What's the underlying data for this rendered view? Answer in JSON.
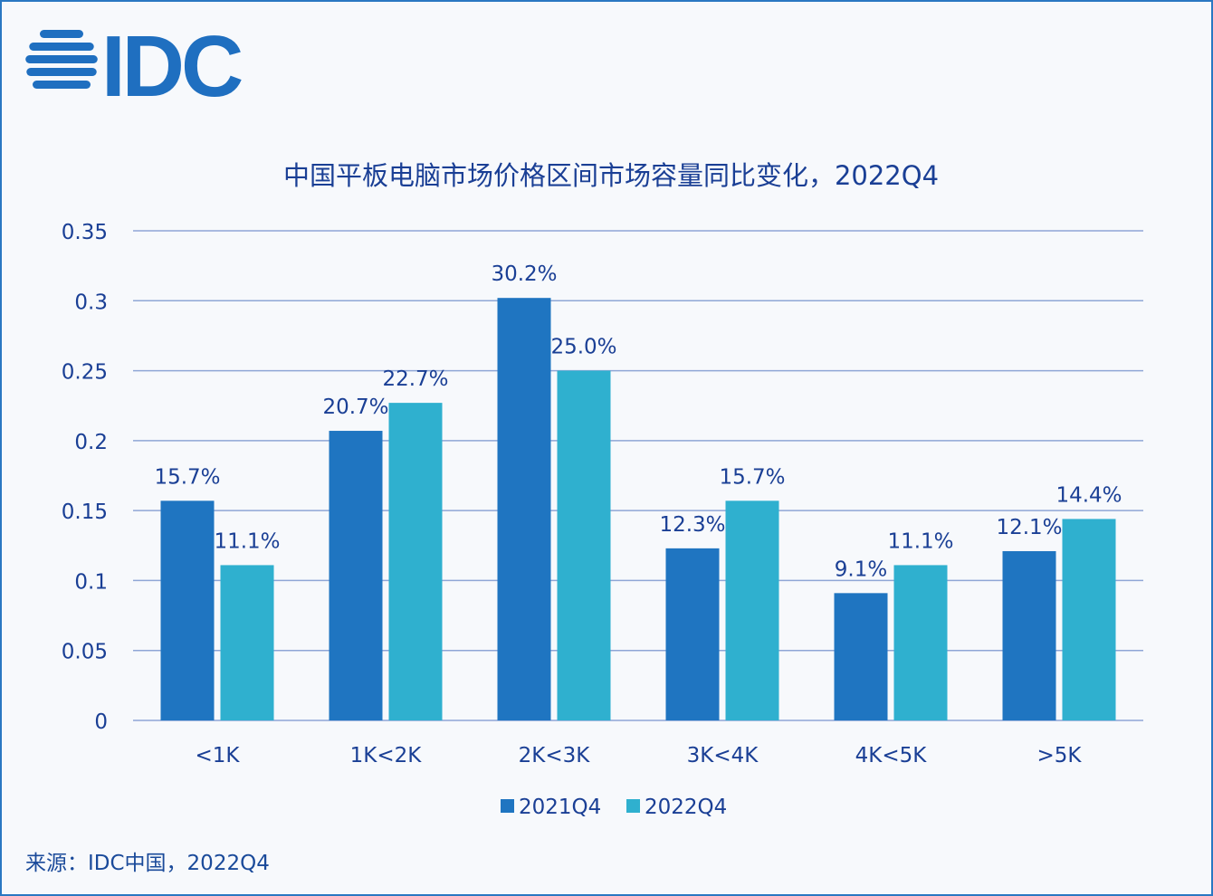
{
  "logo": {
    "text": "IDC",
    "color": "#1f6fc0"
  },
  "source": "来源：IDC中国，2022Q4",
  "chart_data": {
    "type": "bar",
    "title": "中国平板电脑市场价格区间市场容量同比变化，2022Q4",
    "categories": [
      "<1K",
      "1K<2K",
      "2K<3K",
      "3K<4K",
      "4K<5K",
      ">5K"
    ],
    "series": [
      {
        "name": "2021Q4",
        "color": "#1f75c1",
        "values": [
          0.157,
          0.207,
          0.302,
          0.123,
          0.091,
          0.121
        ],
        "labels": [
          "15.7%",
          "20.7%",
          "30.2%",
          "12.3%",
          "9.1%",
          "12.1%"
        ]
      },
      {
        "name": "2022Q4",
        "color": "#2fb0cf",
        "values": [
          0.111,
          0.227,
          0.25,
          0.157,
          0.111,
          0.144
        ],
        "labels": [
          "11.1%",
          "22.7%",
          "25.0%",
          "15.7%",
          "11.1%",
          "14.4%"
        ]
      }
    ],
    "yticks": [
      "0",
      "0.05",
      "0.1",
      "0.15",
      "0.2",
      "0.25",
      "0.3",
      "0.35"
    ],
    "ylim": [
      0,
      0.35
    ],
    "grid": true,
    "legend": "bottom",
    "xlabel": "",
    "ylabel": ""
  }
}
